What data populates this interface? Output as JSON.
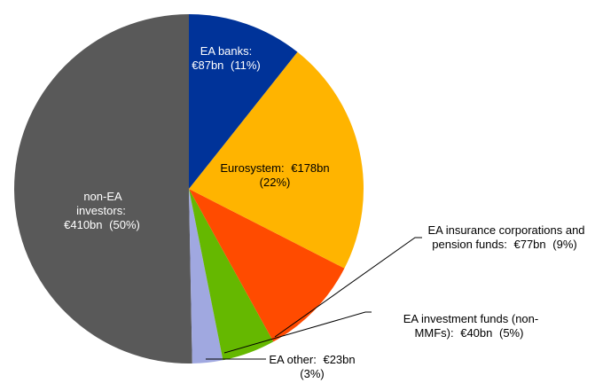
{
  "chart_data": {
    "type": "pie",
    "categories": [
      "EA banks:",
      "Eurosystem:",
      "EA insurance corporations and pension funds:",
      "EA investment funds (non-MMFs):",
      "EA other:",
      "non-EA investors:"
    ],
    "values": [
      87,
      178,
      77,
      40,
      23,
      410
    ],
    "value_labels": [
      "€87bn",
      "€178bn",
      "€77bn",
      "€40bn",
      "€23bn",
      "€410bn"
    ],
    "percents": [
      11,
      22,
      9,
      5,
      3,
      50
    ],
    "percent_labels": [
      "(11%)",
      "(22%)",
      "(9%)",
      "(5%)",
      "(3%)",
      "(50%)"
    ],
    "colors": [
      "#003399",
      "#FFB400",
      "#FF4B00",
      "#65B800",
      "#A0A8E0",
      "#595959"
    ]
  }
}
